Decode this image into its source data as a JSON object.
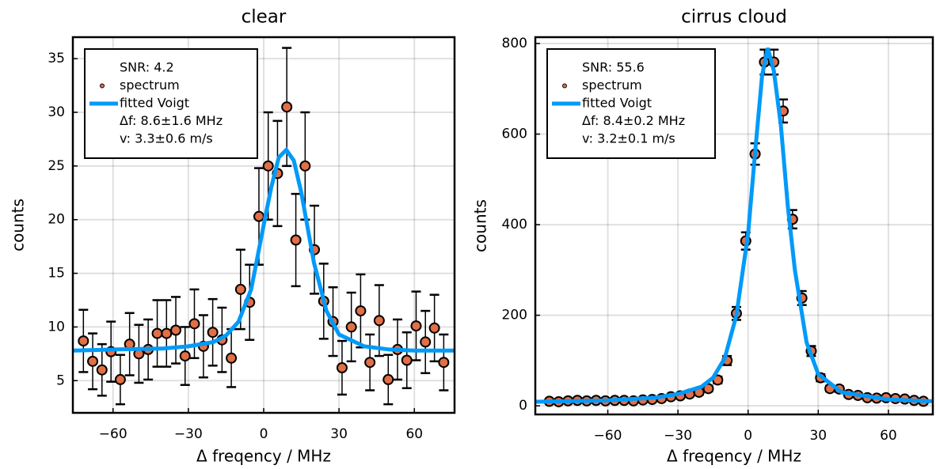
{
  "chart_data": [
    {
      "type": "scatter",
      "title": "clear",
      "xlabel": "Δ freqency / MHz",
      "ylabel": "counts",
      "xlim": [
        -76,
        76
      ],
      "ylim": [
        2,
        37
      ],
      "xticks": [
        {
          "value": -60,
          "label": "−60"
        },
        {
          "value": -30,
          "label": "−30"
        },
        0,
        30,
        60
      ],
      "yticks": [
        5,
        10,
        15,
        20,
        25,
        30,
        35
      ],
      "grid": true,
      "legend": "top-left",
      "legend_header": "SNR: 4.2",
      "legend_notes": [
        "Δf: 8.6±1.6 MHz",
        "v: 3.3±0.6 m/s"
      ],
      "series": [
        {
          "name": "spectrum",
          "color": "#e26f46",
          "x": [
            -71.8,
            -68.1,
            -64.4,
            -60.8,
            -57.1,
            -53.4,
            -49.7,
            -46.0,
            -42.4,
            -38.7,
            -35.0,
            -31.3,
            -27.6,
            -24.0,
            -20.3,
            -16.6,
            -12.9,
            -9.2,
            -5.6,
            -1.9,
            1.8,
            5.5,
            9.2,
            12.8,
            16.5,
            20.2,
            23.9,
            27.6,
            31.2,
            34.9,
            38.6,
            42.3,
            46.0,
            49.6,
            53.3,
            57.0,
            60.7,
            64.4,
            68.0,
            71.7
          ],
          "values": [
            8.7,
            6.8,
            6.0,
            7.7,
            5.1,
            8.4,
            7.5,
            7.9,
            9.4,
            9.4,
            9.7,
            7.3,
            10.3,
            8.2,
            9.5,
            8.8,
            7.1,
            13.5,
            12.3,
            20.3,
            25.0,
            24.3,
            30.5,
            18.1,
            25.0,
            17.2,
            12.4,
            10.5,
            6.2,
            10.0,
            11.5,
            6.7,
            10.6,
            5.1,
            7.9,
            6.9,
            10.1,
            8.6,
            9.9,
            6.7
          ],
          "errors": [
            2.9,
            2.6,
            2.4,
            2.8,
            2.3,
            2.9,
            2.7,
            2.8,
            3.1,
            3.1,
            3.1,
            2.7,
            3.2,
            2.9,
            3.1,
            3.0,
            2.7,
            3.7,
            3.5,
            4.5,
            5.0,
            4.9,
            5.5,
            4.3,
            5.0,
            4.1,
            3.5,
            3.2,
            2.5,
            3.2,
            3.4,
            2.6,
            3.3,
            2.3,
            2.8,
            2.6,
            3.2,
            2.9,
            3.1,
            2.6
          ]
        },
        {
          "name": "fitted Voigt",
          "color": "#009af9",
          "type": "line",
          "x": [
            -76,
            -60,
            -40,
            -30,
            -20,
            -15,
            -10,
            -5,
            0,
            3,
            6,
            9,
            12,
            15,
            20,
            25,
            30,
            40,
            50,
            60,
            76
          ],
          "values": [
            7.8,
            7.9,
            8.0,
            8.2,
            8.6,
            9.2,
            10.5,
            13.5,
            19.5,
            23,
            25.8,
            26.5,
            25.5,
            22.5,
            16,
            11.5,
            9.3,
            8.2,
            7.9,
            7.8,
            7.8
          ]
        }
      ]
    },
    {
      "type": "scatter",
      "title": "cirrus cloud",
      "xlabel": "Δ freqency / MHz",
      "ylabel": "counts",
      "xlim": [
        -91,
        79
      ],
      "ylim": [
        -19,
        814
      ],
      "xticks": [
        {
          "value": -60,
          "label": "−60"
        },
        {
          "value": -30,
          "label": "−30"
        },
        0,
        30,
        60
      ],
      "yticks": [
        0,
        200,
        400,
        600,
        800
      ],
      "grid": true,
      "legend": "top-left",
      "legend_header": "SNR: 55.6",
      "legend_notes": [
        "Δf: 8.4±0.2 MHz",
        "v: 3.2±0.1 m/s"
      ],
      "series": [
        {
          "name": "spectrum",
          "color": "#e26f46",
          "x": [
            -85,
            -81,
            -77,
            -73,
            -69,
            -65,
            -61,
            -57,
            -53,
            -49,
            -45,
            -41,
            -37,
            -33,
            -29,
            -25,
            -21,
            -17,
            -13,
            -9,
            -5,
            -1,
            3,
            7,
            11,
            15,
            19,
            23,
            27,
            31,
            35,
            39,
            43,
            47,
            51,
            55,
            59,
            63,
            67,
            71,
            75
          ],
          "values": [
            10,
            9,
            11,
            12,
            11,
            12,
            11,
            12,
            12,
            11,
            13,
            14,
            16,
            20,
            22,
            26,
            30,
            38,
            57,
            100,
            204,
            364,
            556,
            759,
            759,
            651,
            412,
            238,
            121,
            62,
            38,
            37,
            25,
            23,
            18,
            17,
            18,
            16,
            15,
            12,
            10
          ],
          "errors": [
            3.2,
            3,
            3.3,
            3.5,
            3.3,
            3.5,
            3.3,
            3.5,
            3.5,
            3.3,
            3.6,
            3.7,
            4,
            4.5,
            4.7,
            5.1,
            5.5,
            6.2,
            7.5,
            10,
            14.3,
            19.1,
            23.6,
            27.5,
            27.5,
            25.5,
            20.3,
            15.4,
            11,
            7.9,
            6.2,
            6.1,
            5,
            4.8,
            4.2,
            4.1,
            4.2,
            4,
            3.9,
            3.5,
            3.2
          ]
        },
        {
          "name": "fitted Voigt",
          "color": "#009af9",
          "type": "line",
          "x": [
            -91,
            -60,
            -40,
            -30,
            -20,
            -15,
            -10,
            -5,
            0,
            3,
            6,
            8.4,
            11,
            14,
            17,
            20,
            25,
            30,
            40,
            60,
            79
          ],
          "values": [
            9,
            12,
            18,
            26,
            42,
            62,
            105,
            200,
            380,
            560,
            730,
            790,
            740,
            620,
            440,
            300,
            140,
            70,
            30,
            14,
            10
          ]
        }
      ]
    }
  ]
}
